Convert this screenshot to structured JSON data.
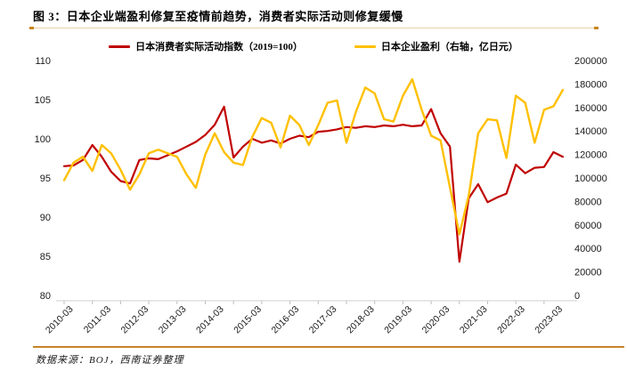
{
  "figure": {
    "title": "图 3：日本企业端盈利修复至疫情前趋势，消费者实际活动则修复缓慢",
    "source": "数据来源：BOJ，西南证券整理"
  },
  "colors": {
    "consumer_line": "#C00000",
    "profit_line": "#FFC000",
    "accent_rule": "#D18434",
    "title_underline": "#ECD2A2",
    "axis_line": "#D9D9D9",
    "tick_mark": "#BFBFBF",
    "axis_text": "#1a1a1a"
  },
  "chart_data": {
    "type": "line",
    "title": "",
    "grid": false,
    "legend_position": "top",
    "categories": [
      "2009-12",
      "2010-03",
      "2010-06",
      "2010-09",
      "2010-12",
      "2011-03",
      "2011-06",
      "2011-09",
      "2011-12",
      "2012-03",
      "2012-06",
      "2012-09",
      "2012-12",
      "2013-03",
      "2013-06",
      "2013-09",
      "2013-12",
      "2014-03",
      "2014-06",
      "2014-09",
      "2014-12",
      "2015-03",
      "2015-06",
      "2015-09",
      "2015-12",
      "2016-03",
      "2016-06",
      "2016-09",
      "2016-12",
      "2017-03",
      "2017-06",
      "2017-09",
      "2017-12",
      "2018-03",
      "2018-06",
      "2018-09",
      "2018-12",
      "2019-03",
      "2019-06",
      "2019-09",
      "2019-12",
      "2020-03",
      "2020-06",
      "2020-09",
      "2020-12",
      "2021-03",
      "2021-06",
      "2021-09",
      "2021-12",
      "2022-03",
      "2022-06",
      "2022-09",
      "2022-12",
      "2023-03"
    ],
    "series": [
      {
        "name": "日本消费者实际活动指数（2019=100）",
        "axis": "left",
        "color": "#C00000",
        "values": [
          96.5,
          96.6,
          97.3,
          99.2,
          97.7,
          95.8,
          94.6,
          94.3,
          97.3,
          97.5,
          97.4,
          97.9,
          98.4,
          99.0,
          99.6,
          100.5,
          101.8,
          104.1,
          97.6,
          99.0,
          100.0,
          99.5,
          99.8,
          99.4,
          100.0,
          100.4,
          100.2,
          100.9,
          101.0,
          101.2,
          101.5,
          101.4,
          101.6,
          101.5,
          101.7,
          101.6,
          101.8,
          101.6,
          101.7,
          103.8,
          100.7,
          99.0,
          84.3,
          92.4,
          94.2,
          91.9,
          92.5,
          93.0,
          96.7,
          95.6,
          96.3,
          96.4,
          98.3,
          97.7
        ]
      },
      {
        "name": "日本企业盈利（右轴，亿日元）",
        "axis": "right",
        "color": "#FFC000",
        "values": [
          98000,
          113000,
          118000,
          106000,
          128000,
          121000,
          107000,
          90000,
          103000,
          121000,
          124000,
          121000,
          118000,
          103000,
          91500,
          120000,
          138000,
          122000,
          113000,
          111000,
          135000,
          151000,
          147000,
          126000,
          153000,
          145000,
          128000,
          145000,
          164000,
          166000,
          130000,
          156000,
          177000,
          172000,
          150000,
          148000,
          170000,
          184000,
          158000,
          136000,
          132000,
          92000,
          52000,
          85000,
          138000,
          150000,
          149000,
          117000,
          170000,
          164000,
          130000,
          158000,
          161000,
          175000
        ]
      }
    ],
    "left_axis": {
      "min": 80,
      "max": 110,
      "ticks": [
        110,
        105,
        100,
        95,
        90,
        85,
        80
      ]
    },
    "right_axis": {
      "min": 0,
      "max": 200000,
      "ticks": [
        200000,
        180000,
        160000,
        140000,
        120000,
        100000,
        80000,
        60000,
        40000,
        20000,
        0
      ]
    },
    "x_tick_labels": [
      "2010-03",
      "2011-03",
      "2012-03",
      "2013-03",
      "2014-03",
      "2015-03",
      "2016-03",
      "2017-03",
      "2018-03",
      "2019-03",
      "2020-03",
      "2021-03",
      "2022-03",
      "2023-03"
    ]
  }
}
